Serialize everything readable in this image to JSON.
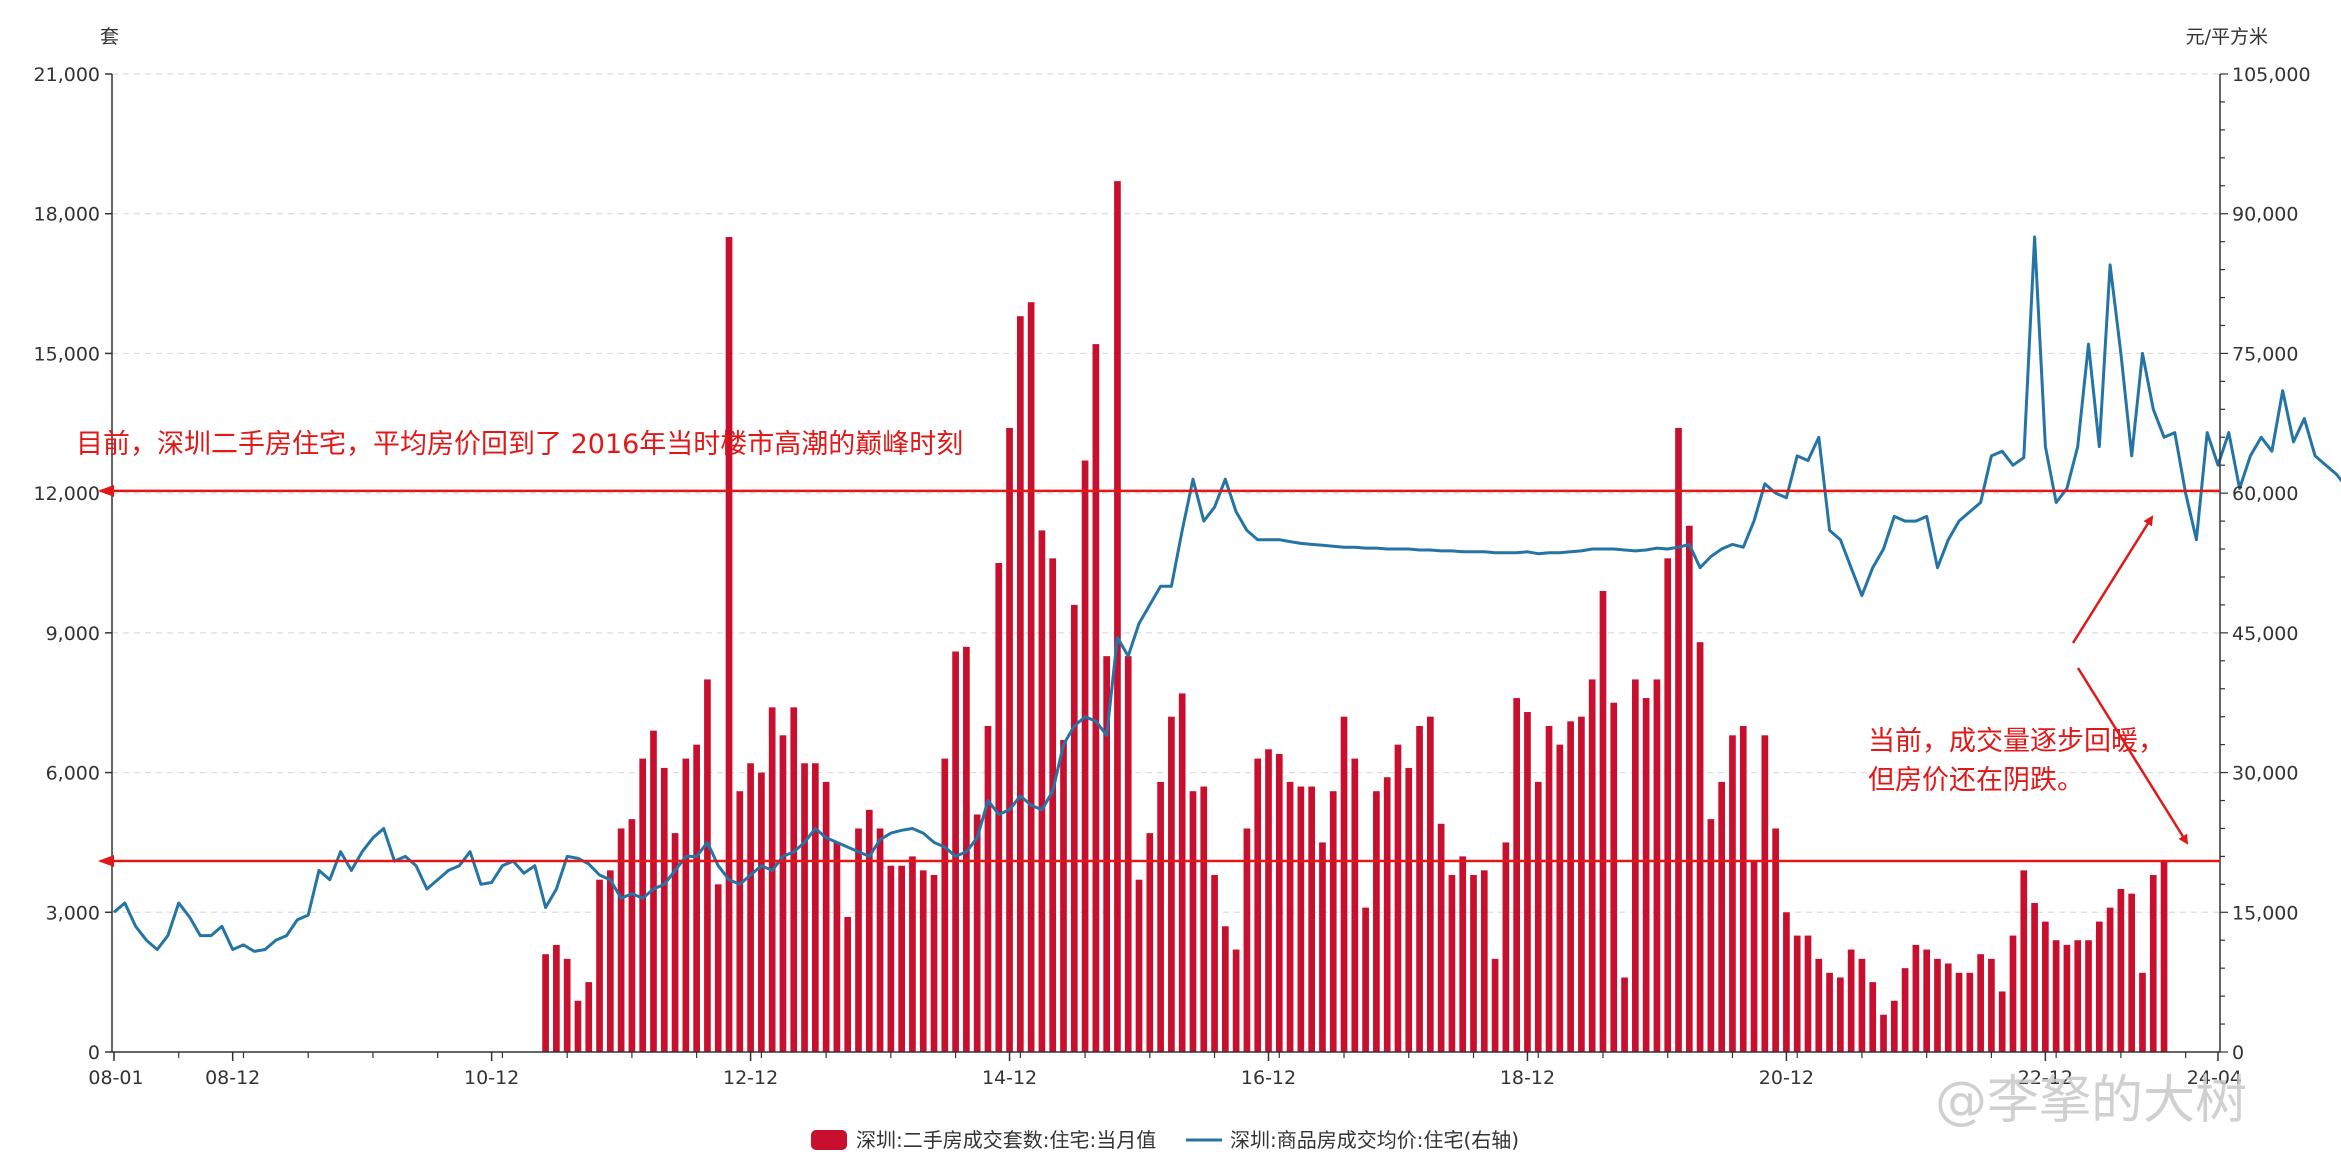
{
  "chart_data": {
    "type": "bar+line",
    "left_axis_unit": "套",
    "right_axis_unit": "元/平方米",
    "y_left": {
      "min": 0,
      "max": 21000,
      "ticks": [
        0,
        3000,
        6000,
        9000,
        12000,
        15000,
        18000,
        21000
      ],
      "tick_labels": [
        "0",
        "3,000",
        "6,000",
        "9,000",
        "12,000",
        "15,000",
        "18,000",
        "21,000"
      ]
    },
    "y_right": {
      "min": 0,
      "max": 105000,
      "ticks": [
        0,
        15000,
        30000,
        45000,
        60000,
        75000,
        90000,
        105000
      ],
      "tick_labels": [
        "0",
        "15,000",
        "30,000",
        "45,000",
        "60,000",
        "75,000",
        "90,000",
        "105,000"
      ]
    },
    "x_start": "2008-01",
    "x_end": "2024-04",
    "x_tick_labels": [
      "08-01",
      "08-12",
      "10-12",
      "12-12",
      "14-12",
      "16-12",
      "18-12",
      "20-12",
      "22-12",
      "24-04"
    ],
    "x_tick_months": [
      "2008-01",
      "2008-12",
      "2010-12",
      "2012-12",
      "2014-12",
      "2016-12",
      "2018-12",
      "2020-12",
      "2022-12",
      "2024-04"
    ],
    "grid": "horizontal dashed",
    "legend_position": "bottom-center",
    "series": [
      {
        "name": "深圳:二手房成交套数:住宅:当月值",
        "type": "bar",
        "axis": "left",
        "color": "#c8102e",
        "start": "2011-05",
        "values": [
          2100,
          2300,
          2000,
          1100,
          1500,
          3700,
          3900,
          4800,
          5000,
          6300,
          6900,
          6100,
          4700,
          6300,
          6600,
          8000,
          3600,
          17500,
          5600,
          6200,
          6000,
          7400,
          6800,
          7400,
          6200,
          6200,
          5800,
          4500,
          2900,
          4800,
          5200,
          4800,
          4000,
          4000,
          4200,
          3900,
          3800,
          6300,
          8600,
          8700,
          5100,
          7000,
          10500,
          13400,
          15800,
          16100,
          11200,
          10600,
          6700,
          9600,
          12700,
          15200,
          8500,
          18700,
          8500,
          3700,
          4700,
          5800,
          7200,
          7700,
          5600,
          5700,
          3800,
          2700,
          2200,
          4800,
          6300,
          6500,
          6400,
          5800,
          5700,
          5700,
          4500,
          5600,
          7200,
          6300,
          3100,
          5600,
          5900,
          6600,
          6100,
          7000,
          7200,
          4900,
          3800,
          4200,
          3800,
          3900,
          2000,
          4500,
          7600,
          7300,
          5800,
          7000,
          6600,
          7100,
          7200,
          8000,
          9900,
          7500,
          1600,
          8000,
          7600,
          8000,
          10600,
          13400,
          11300,
          8800,
          5000,
          5800,
          6800,
          7000,
          4100,
          6800,
          4800,
          3000,
          2500,
          2500,
          2000,
          1700,
          1600,
          2200,
          2000,
          1500,
          800,
          1100,
          1800,
          2300,
          2200,
          2000,
          1900,
          1700,
          1700,
          2100,
          2000,
          1300,
          2500,
          3900,
          3200,
          2800,
          2400,
          2300,
          2400,
          2400,
          2800,
          3100,
          3500,
          3400,
          1700,
          3800,
          4100
        ]
      },
      {
        "name": "深圳:商品房成交均价:住宅(右轴)",
        "type": "line",
        "axis": "right",
        "color": "#2474a6",
        "start": "2008-01",
        "values": [
          15000,
          16000,
          13500,
          12000,
          11000,
          12500,
          16000,
          14500,
          12500,
          12500,
          13500,
          11000,
          11500,
          10800,
          11000,
          12000,
          12500,
          14200,
          14700,
          19500,
          18500,
          21500,
          19500,
          21500,
          23000,
          24000,
          20500,
          21000,
          20000,
          17500,
          18500,
          19500,
          20000,
          21500,
          18000,
          18200,
          20000,
          20500,
          19200,
          20000,
          15500,
          17500,
          21000,
          20800,
          20200,
          19000,
          18500,
          16500,
          17000,
          16500,
          17500,
          18000,
          19500,
          21000,
          21000,
          22500,
          20000,
          18500,
          18000,
          19000,
          20000,
          19500,
          21000,
          21500,
          22500,
          24000,
          23000,
          22500,
          22000,
          21500,
          21000,
          22800,
          23500,
          23800,
          24000,
          23500,
          22500,
          22000,
          21000,
          21500,
          23000,
          27000,
          25500,
          26000,
          27500,
          26500,
          26000,
          28000,
          33000,
          35000,
          36000,
          35500,
          34000,
          44500,
          42500,
          46000,
          48000,
          50000,
          50000,
          56000,
          61500,
          57000,
          58500,
          61500,
          58000,
          56000,
          55000,
          55000,
          55000,
          54800,
          54600,
          54500,
          54400,
          54300,
          54200,
          54200,
          54100,
          54100,
          54000,
          54000,
          54000,
          53900,
          53900,
          53800,
          53800,
          53700,
          53700,
          53700,
          53600,
          53600,
          53600,
          53700,
          53500,
          53600,
          53600,
          53700,
          53800,
          54000,
          54000,
          54000,
          53900,
          53800,
          53900,
          54100,
          54000,
          54200,
          54500,
          52000,
          53200,
          54000,
          54500,
          54200,
          57000,
          61000,
          60000,
          59500,
          64000,
          63500,
          66000,
          56000,
          55000,
          52000,
          49000,
          52000,
          54000,
          57500,
          57000,
          57000,
          57500,
          52000,
          55000,
          57000,
          58000,
          59000,
          64000,
          64500,
          63000,
          63800,
          87500,
          65000,
          59000,
          60500,
          65000,
          76000,
          65000,
          84500,
          75000,
          64000,
          75000,
          69000,
          66000,
          66500,
          60000,
          55000,
          66500,
          63000,
          66500,
          60500,
          64000,
          66000,
          64500,
          71000,
          65500,
          68000,
          64000,
          63000,
          62000,
          60500,
          61000,
          60500
        ]
      }
    ],
    "reference_lines": [
      {
        "axis": "left",
        "value": 12050,
        "color": "#e01818"
      },
      {
        "axis": "left",
        "value": 4100,
        "color": "#e01818"
      }
    ],
    "annotations": [
      {
        "text": "目前，深圳二手房住宅，平均房价回到了 2016年当时楼市高潮的巅峰时刻"
      },
      {
        "text": "当前，成交量逐步回暖，"
      },
      {
        "text": "但房价还在阴跌。"
      }
    ]
  },
  "watermark": "@李拏的大树"
}
